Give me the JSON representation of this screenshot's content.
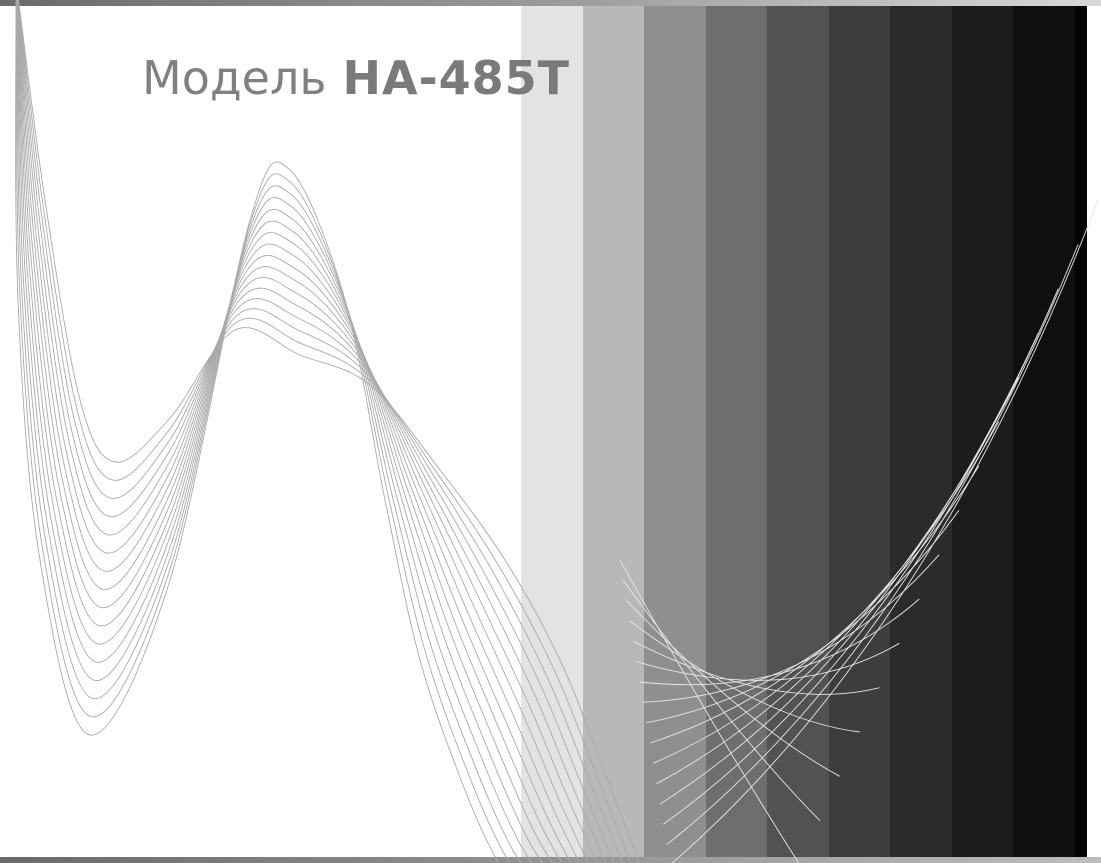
{
  "header": {
    "title_word": "Модель",
    "model_number": "HA-485T"
  },
  "palette": {
    "background": "#ffffff",
    "curve_light": "#a9a9a9",
    "curve_on_dark": "#e6e6e6",
    "bands": [
      "#e3e3e3",
      "#b8b8b8",
      "#8f8f8f",
      "#6e6e6e",
      "#525252",
      "#3d3d3d",
      "#2b2b2b",
      "#1c1c1c",
      "#0f0f0f",
      "#050505"
    ]
  },
  "decoration": {
    "left_wave_lines": 16,
    "right_arc_lines": 16
  }
}
